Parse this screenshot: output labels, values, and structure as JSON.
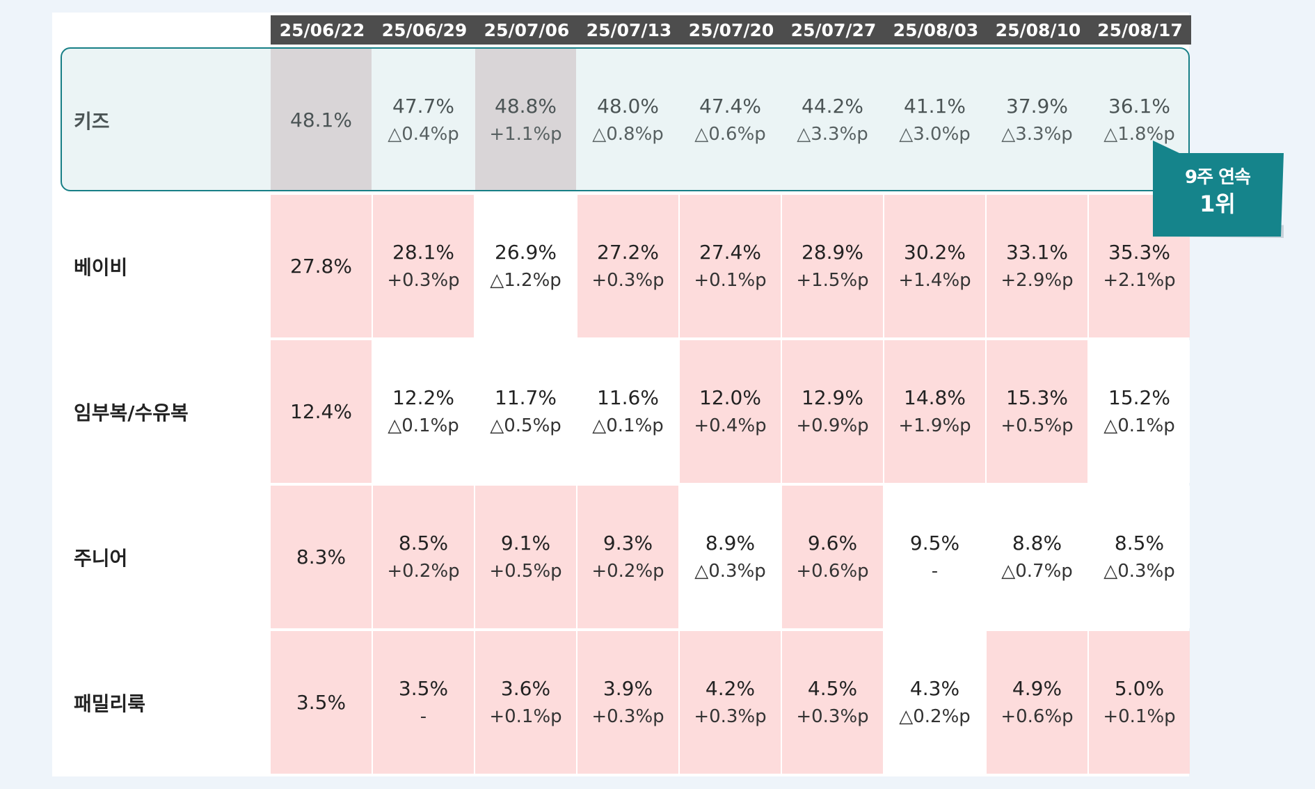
{
  "colors": {
    "header_bg": "#4d4d4d",
    "increase_bg": "#fddcdc",
    "neutral_bg": "#ffffff",
    "highlight_border": "#177f86",
    "callout_bg": "#15848b"
  },
  "callout": {
    "line1": "9주 연속",
    "line2": "1위"
  },
  "chart_data": {
    "type": "table",
    "columns": [
      "25/06/22",
      "25/06/29",
      "25/07/06",
      "25/07/13",
      "25/07/20",
      "25/07/27",
      "25/08/03",
      "25/08/10",
      "25/08/17"
    ],
    "rows": [
      {
        "label": "키즈",
        "highlighted": true,
        "values": [
          "48.1%",
          "47.7%",
          "48.8%",
          "48.0%",
          "47.4%",
          "44.2%",
          "41.1%",
          "37.9%",
          "36.1%"
        ],
        "changes": [
          "",
          "△0.4%p",
          "+1.1%p",
          "△0.8%p",
          "△0.6%p",
          "△3.3%p",
          "△3.0%p",
          "△3.3%p",
          "△1.8%p"
        ],
        "increase": [
          true,
          false,
          true,
          false,
          false,
          false,
          false,
          false,
          false
        ]
      },
      {
        "label": "베이비",
        "values": [
          "27.8%",
          "28.1%",
          "26.9%",
          "27.2%",
          "27.4%",
          "28.9%",
          "30.2%",
          "33.1%",
          "35.3%"
        ],
        "changes": [
          "",
          "+0.3%p",
          "△1.2%p",
          "+0.3%p",
          "+0.1%p",
          "+1.5%p",
          "+1.4%p",
          "+2.9%p",
          "+2.1%p"
        ],
        "increase": [
          true,
          true,
          false,
          true,
          true,
          true,
          true,
          true,
          true
        ]
      },
      {
        "label": "임부복/수유복",
        "values": [
          "12.4%",
          "12.2%",
          "11.7%",
          "11.6%",
          "12.0%",
          "12.9%",
          "14.8%",
          "15.3%",
          "15.2%"
        ],
        "changes": [
          "",
          "△0.1%p",
          "△0.5%p",
          "△0.1%p",
          "+0.4%p",
          "+0.9%p",
          "+1.9%p",
          "+0.5%p",
          "△0.1%p"
        ],
        "increase": [
          true,
          false,
          false,
          false,
          true,
          true,
          true,
          true,
          false
        ]
      },
      {
        "label": "주니어",
        "values": [
          "8.3%",
          "8.5%",
          "9.1%",
          "9.3%",
          "8.9%",
          "9.6%",
          "9.5%",
          "8.8%",
          "8.5%"
        ],
        "changes": [
          "",
          "+0.2%p",
          "+0.5%p",
          "+0.2%p",
          "△0.3%p",
          "+0.6%p",
          "-",
          "△0.7%p",
          "△0.3%p"
        ],
        "increase": [
          true,
          true,
          true,
          true,
          false,
          true,
          false,
          false,
          false
        ]
      },
      {
        "label": "패밀리룩",
        "values": [
          "3.5%",
          "3.5%",
          "3.6%",
          "3.9%",
          "4.2%",
          "4.5%",
          "4.3%",
          "4.9%",
          "5.0%"
        ],
        "changes": [
          "",
          "-",
          "+0.1%p",
          "+0.3%p",
          "+0.3%p",
          "+0.3%p",
          "△0.2%p",
          "+0.6%p",
          "+0.1%p"
        ],
        "increase": [
          true,
          true,
          true,
          true,
          true,
          true,
          false,
          true,
          true
        ]
      }
    ]
  }
}
